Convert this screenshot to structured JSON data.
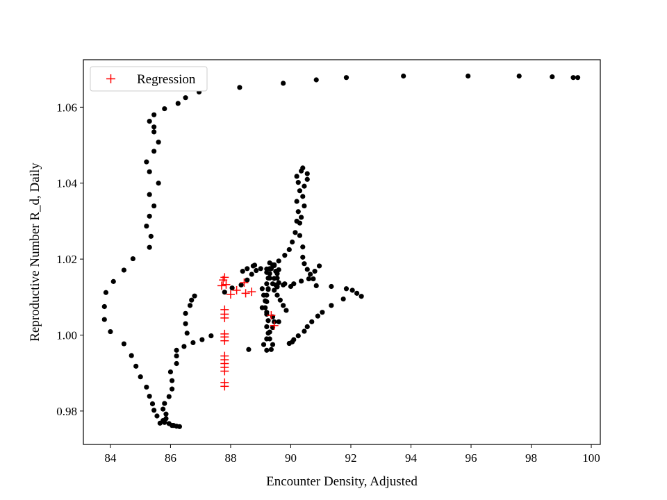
{
  "chart_data": {
    "type": "scatter",
    "title": "",
    "xlabel": "Encounter Density, Adjusted",
    "ylabel": "Reproductive Number R_d, Daily",
    "xlim": [
      83.1,
      100.3
    ],
    "ylim": [
      0.9712,
      1.0725
    ],
    "xticks": [
      84,
      86,
      88,
      90,
      92,
      94,
      96,
      98,
      100
    ],
    "yticks": [
      0.98,
      1.0,
      1.02,
      1.04,
      1.06
    ],
    "xtick_labels": [
      "84",
      "86",
      "88",
      "90",
      "92",
      "94",
      "96",
      "98",
      "100"
    ],
    "ytick_labels": [
      "0.98",
      "1.00",
      "1.02",
      "1.04",
      "1.06"
    ],
    "grid": false,
    "legend": {
      "position": "top-left",
      "entries": [
        "Regression"
      ]
    },
    "series": [
      {
        "marker": "dot",
        "color": "#000000",
        "points": [
          [
            99.55,
            1.0678
          ],
          [
            99.4,
            1.0678
          ],
          [
            98.7,
            1.068
          ],
          [
            97.6,
            1.0682
          ],
          [
            95.9,
            1.0682
          ],
          [
            93.75,
            1.0682
          ],
          [
            91.85,
            1.0678
          ],
          [
            90.85,
            1.0672
          ],
          [
            89.75,
            1.0663
          ],
          [
            88.3,
            1.0652
          ],
          [
            86.95,
            1.064
          ],
          [
            86.5,
            1.0625
          ],
          [
            86.25,
            1.061
          ],
          [
            85.8,
            1.0596
          ],
          [
            85.45,
            1.058
          ],
          [
            85.3,
            1.0563
          ],
          [
            85.45,
            1.0548
          ],
          [
            85.45,
            1.0535
          ],
          [
            85.6,
            1.0508
          ],
          [
            85.45,
            1.0484
          ],
          [
            85.2,
            1.0456
          ],
          [
            85.3,
            1.043
          ],
          [
            85.6,
            1.04
          ],
          [
            85.3,
            1.037
          ],
          [
            85.45,
            1.034
          ],
          [
            85.3,
            1.0313
          ],
          [
            85.2,
            1.0287
          ],
          [
            85.35,
            1.026
          ],
          [
            85.3,
            1.0231
          ],
          [
            84.75,
            1.0201
          ],
          [
            84.45,
            1.0171
          ],
          [
            84.1,
            1.0141
          ],
          [
            83.85,
            1.0112
          ],
          [
            83.8,
            1.0075
          ],
          [
            83.8,
            1.0041
          ],
          [
            84.0,
            1.0009
          ],
          [
            84.45,
            0.9977
          ],
          [
            84.7,
            0.9946
          ],
          [
            84.85,
            0.9918
          ],
          [
            85.0,
            0.989
          ],
          [
            85.2,
            0.9863
          ],
          [
            85.3,
            0.9839
          ],
          [
            85.4,
            0.9819
          ],
          [
            85.45,
            0.9802
          ],
          [
            85.55,
            0.9787
          ],
          [
            85.75,
            0.9775
          ],
          [
            85.65,
            0.9768
          ],
          [
            85.8,
            0.977
          ],
          [
            86.05,
            0.9762
          ],
          [
            86.2,
            0.976
          ],
          [
            86.3,
            0.9759
          ],
          [
            86.1,
            0.9762
          ],
          [
            85.95,
            0.9767
          ],
          [
            85.85,
            0.978
          ],
          [
            85.85,
            0.9792
          ],
          [
            85.75,
            0.9805
          ],
          [
            85.8,
            0.982
          ],
          [
            85.95,
            0.9838
          ],
          [
            86.05,
            0.9858
          ],
          [
            86.05,
            0.988
          ],
          [
            86.0,
            0.9903
          ],
          [
            86.2,
            0.9925
          ],
          [
            86.2,
            0.9945
          ],
          [
            86.2,
            0.996
          ],
          [
            86.45,
            0.997
          ],
          [
            86.75,
            0.998
          ],
          [
            87.05,
            0.9988
          ],
          [
            87.35,
            0.9998
          ],
          [
            86.55,
            1.0005
          ],
          [
            86.5,
            1.003
          ],
          [
            86.5,
            1.0057
          ],
          [
            86.65,
            1.0078
          ],
          [
            86.7,
            1.0092
          ],
          [
            86.8,
            1.0103
          ],
          [
            87.8,
            1.0113
          ],
          [
            88.05,
            1.0124
          ],
          [
            88.35,
            1.0132
          ],
          [
            88.55,
            1.0145
          ],
          [
            88.7,
            1.016
          ],
          [
            88.85,
            1.017
          ],
          [
            89.0,
            1.0175
          ],
          [
            88.8,
            1.0184
          ],
          [
            89.2,
            1.0174
          ],
          [
            89.35,
            1.0175
          ],
          [
            89.6,
            1.0172
          ],
          [
            89.45,
            1.0183
          ],
          [
            89.55,
            1.0162
          ],
          [
            89.45,
            1.0149
          ],
          [
            89.6,
            1.0138
          ],
          [
            89.75,
            1.0132
          ],
          [
            89.55,
            1.0127
          ],
          [
            89.4,
            1.0135
          ],
          [
            89.3,
            1.015
          ],
          [
            89.2,
            1.0165
          ],
          [
            89.3,
            1.0175
          ],
          [
            89.45,
            1.0185
          ],
          [
            89.6,
            1.0195
          ],
          [
            89.8,
            1.021
          ],
          [
            89.95,
            1.0225
          ],
          [
            90.05,
            1.0245
          ],
          [
            90.15,
            1.027
          ],
          [
            90.2,
            1.03
          ],
          [
            90.25,
            1.0325
          ],
          [
            90.2,
            1.0352
          ],
          [
            90.3,
            1.038
          ],
          [
            90.25,
            1.0402
          ],
          [
            90.2,
            1.0418
          ],
          [
            90.35,
            1.0432
          ],
          [
            90.4,
            1.044
          ],
          [
            90.55,
            1.0425
          ],
          [
            90.55,
            1.041
          ],
          [
            90.45,
            1.0392
          ],
          [
            90.4,
            1.0365
          ],
          [
            90.45,
            1.034
          ],
          [
            90.35,
            1.031
          ],
          [
            90.3,
            1.0295
          ],
          [
            90.3,
            1.0262
          ],
          [
            90.4,
            1.0232
          ],
          [
            90.4,
            1.0205
          ],
          [
            90.45,
            1.0188
          ],
          [
            90.55,
            1.0173
          ],
          [
            90.65,
            1.016
          ],
          [
            90.75,
            1.0148
          ],
          [
            90.85,
            1.013
          ],
          [
            90.6,
            1.0148
          ],
          [
            90.35,
            1.0142
          ],
          [
            90.1,
            1.0135
          ],
          [
            90.0,
            1.0128
          ],
          [
            89.8,
            1.0135
          ],
          [
            89.55,
            1.0128
          ],
          [
            89.25,
            1.0122
          ],
          [
            89.05,
            1.0122
          ],
          [
            89.1,
            1.0105
          ],
          [
            89.2,
            1.0088
          ],
          [
            89.05,
            1.0072
          ],
          [
            89.2,
            1.006
          ],
          [
            89.4,
            1.0048
          ],
          [
            89.45,
            1.0035
          ],
          [
            89.6,
            1.0035
          ],
          [
            89.4,
            1.002
          ],
          [
            89.3,
            1.0008
          ],
          [
            89.2,
            0.999
          ],
          [
            89.1,
            0.9975
          ],
          [
            89.2,
            0.996
          ],
          [
            89.35,
            0.9962
          ],
          [
            89.4,
            0.9975
          ],
          [
            89.3,
            0.999
          ],
          [
            89.25,
            1.0005
          ],
          [
            89.2,
            1.0022
          ],
          [
            89.25,
            1.0038
          ],
          [
            89.2,
            1.0055
          ],
          [
            89.15,
            1.0072
          ],
          [
            89.15,
            1.009
          ],
          [
            89.2,
            1.0105
          ],
          [
            89.25,
            1.012
          ],
          [
            89.2,
            1.0135
          ],
          [
            89.25,
            1.015
          ],
          [
            89.3,
            1.0162
          ],
          [
            89.35,
            1.0175
          ],
          [
            89.3,
            1.019
          ],
          [
            89.4,
            1.0185
          ],
          [
            89.5,
            1.0168
          ],
          [
            89.55,
            1.015
          ],
          [
            89.5,
            1.0132
          ],
          [
            89.45,
            1.0118
          ],
          [
            89.55,
            1.0105
          ],
          [
            89.65,
            1.0092
          ],
          [
            89.75,
            1.0078
          ],
          [
            89.85,
            1.0065
          ],
          [
            90.1,
            0.9988
          ],
          [
            90.05,
            0.9982
          ],
          [
            89.95,
            0.9978
          ],
          [
            90.25,
            0.9998
          ],
          [
            90.45,
            1.001
          ],
          [
            90.55,
            1.0022
          ],
          [
            90.7,
            1.0035
          ],
          [
            90.9,
            1.005
          ],
          [
            91.05,
            1.006
          ],
          [
            91.35,
            1.0078
          ],
          [
            91.75,
            1.0095
          ],
          [
            91.85,
            1.0122
          ],
          [
            92.05,
            1.0118
          ],
          [
            92.2,
            1.011
          ],
          [
            92.35,
            1.0102
          ],
          [
            91.35,
            1.0128
          ],
          [
            90.95,
            1.0182
          ],
          [
            90.8,
            1.0168
          ],
          [
            88.75,
            1.0182
          ],
          [
            88.55,
            1.0175
          ],
          [
            88.4,
            1.0168
          ],
          [
            88.6,
            0.9962
          ]
        ]
      },
      {
        "name": "Regression",
        "marker": "plus",
        "color": "#ff0000",
        "points": [
          [
            87.7,
            1.013
          ],
          [
            87.75,
            1.0145
          ],
          [
            87.8,
            1.0152
          ],
          [
            87.85,
            1.0133
          ],
          [
            88.0,
            1.0107
          ],
          [
            88.2,
            1.0118
          ],
          [
            88.45,
            1.0138
          ],
          [
            88.5,
            1.011
          ],
          [
            88.7,
            1.0114
          ],
          [
            89.35,
            1.0052
          ],
          [
            89.45,
            1.0025
          ],
          [
            87.8,
            1.0067
          ],
          [
            87.8,
            1.0055
          ],
          [
            87.8,
            1.0045
          ],
          [
            87.8,
            1.0003
          ],
          [
            87.8,
            0.9995
          ],
          [
            87.8,
            0.9985
          ],
          [
            87.8,
            0.9945
          ],
          [
            87.8,
            0.9935
          ],
          [
            87.8,
            0.9925
          ],
          [
            87.8,
            0.9915
          ],
          [
            87.8,
            0.9905
          ],
          [
            87.8,
            0.9875
          ],
          [
            87.8,
            0.9865
          ]
        ]
      }
    ]
  }
}
